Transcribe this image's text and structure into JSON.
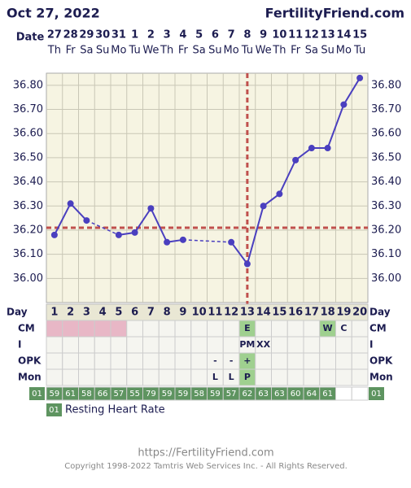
{
  "header": {
    "date": "Oct 27, 2022",
    "site": "FertilityFriend.com"
  },
  "chart_data": {
    "type": "line",
    "x_label": "Date",
    "color": "#4a3fbf",
    "dates": [
      "27",
      "28",
      "29",
      "30",
      "31",
      "1",
      "2",
      "3",
      "4",
      "5",
      "6",
      "7",
      "8",
      "9",
      "10",
      "11",
      "12",
      "13",
      "14",
      "15"
    ],
    "weekdays": [
      "Th",
      "Fr",
      "Sa",
      "Su",
      "Mo",
      "Tu",
      "We",
      "Th",
      "Fr",
      "Sa",
      "Su",
      "Mo",
      "Tu",
      "We",
      "Th",
      "Fr",
      "Sa",
      "Su",
      "Mo",
      "Tu"
    ],
    "day_label": "Day",
    "categories": [
      1,
      2,
      3,
      4,
      5,
      6,
      7,
      8,
      9,
      10,
      11,
      12,
      13,
      14,
      15,
      16,
      17,
      18,
      19,
      20
    ],
    "values": [
      36.18,
      36.31,
      36.24,
      null,
      36.18,
      36.19,
      36.29,
      36.15,
      36.16,
      null,
      null,
      36.15,
      36.06,
      36.3,
      36.35,
      36.49,
      36.54,
      36.54,
      36.72,
      36.83
    ],
    "coverline": 36.21,
    "ovulation_day": 13,
    "marker_color": "#c0504d",
    "ylim": [
      35.9,
      36.85
    ],
    "yticks": [
      {
        "value": 36.0,
        "label": "36.00"
      },
      {
        "value": 36.1,
        "label": "36.10"
      },
      {
        "value": 36.2,
        "label": "36.20"
      },
      {
        "value": 36.3,
        "label": "36.30"
      },
      {
        "value": 36.4,
        "label": "36.40"
      },
      {
        "value": 36.5,
        "label": "36.50"
      },
      {
        "value": 36.6,
        "label": "36.60"
      },
      {
        "value": 36.7,
        "label": "36.70"
      },
      {
        "value": 36.8,
        "label": "36.80"
      }
    ],
    "grid": true
  },
  "table": {
    "rows": [
      {
        "label": "CM",
        "cells": [
          null,
          null,
          null,
          null,
          null,
          null,
          null,
          null,
          null,
          null,
          null,
          null,
          "E",
          null,
          null,
          null,
          null,
          "W",
          "C",
          null
        ],
        "colors": [
          "#e8b7c6",
          "#e8b7c6",
          "#e8b7c6",
          "#e8b7c6",
          "#e8b7c6",
          null,
          null,
          null,
          null,
          null,
          null,
          null,
          "#9fd08f",
          null,
          null,
          null,
          null,
          "#9fd08f",
          null,
          null
        ]
      },
      {
        "label": "I",
        "cells": [
          null,
          null,
          null,
          null,
          null,
          null,
          null,
          null,
          null,
          null,
          null,
          null,
          "PM",
          "XX",
          null,
          null,
          null,
          null,
          null,
          null
        ],
        "colors": [
          null,
          null,
          null,
          null,
          null,
          null,
          null,
          null,
          null,
          null,
          null,
          null,
          null,
          null,
          null,
          null,
          null,
          null,
          null,
          null
        ]
      },
      {
        "label": "OPK",
        "cells": [
          null,
          null,
          null,
          null,
          null,
          null,
          null,
          null,
          null,
          null,
          "-",
          "-",
          "+",
          null,
          null,
          null,
          null,
          null,
          null,
          null
        ],
        "colors": [
          null,
          null,
          null,
          null,
          null,
          null,
          null,
          null,
          null,
          null,
          null,
          null,
          "#9fd08f",
          null,
          null,
          null,
          null,
          null,
          null,
          null
        ]
      },
      {
        "label": "Mon",
        "cells": [
          null,
          null,
          null,
          null,
          null,
          null,
          null,
          null,
          null,
          null,
          "L",
          "L",
          "P",
          null,
          null,
          null,
          null,
          null,
          null,
          null
        ],
        "colors": [
          null,
          null,
          null,
          null,
          null,
          null,
          null,
          null,
          null,
          null,
          null,
          null,
          "#9fd08f",
          null,
          null,
          null,
          null,
          null,
          null,
          null
        ]
      }
    ]
  },
  "rhr": {
    "code": "01",
    "label": "Resting Heart Rate",
    "color": "#5e9460",
    "values": [
      59,
      61,
      58,
      66,
      57,
      55,
      79,
      59,
      59,
      58,
      59,
      57,
      62,
      63,
      63,
      60,
      64,
      61,
      null,
      null
    ]
  },
  "footer": {
    "url": "https://FertilityFriend.com",
    "copyright": "Copyright 1998-2022 Tamtris Web Services Inc. - All Rights Reserved."
  }
}
